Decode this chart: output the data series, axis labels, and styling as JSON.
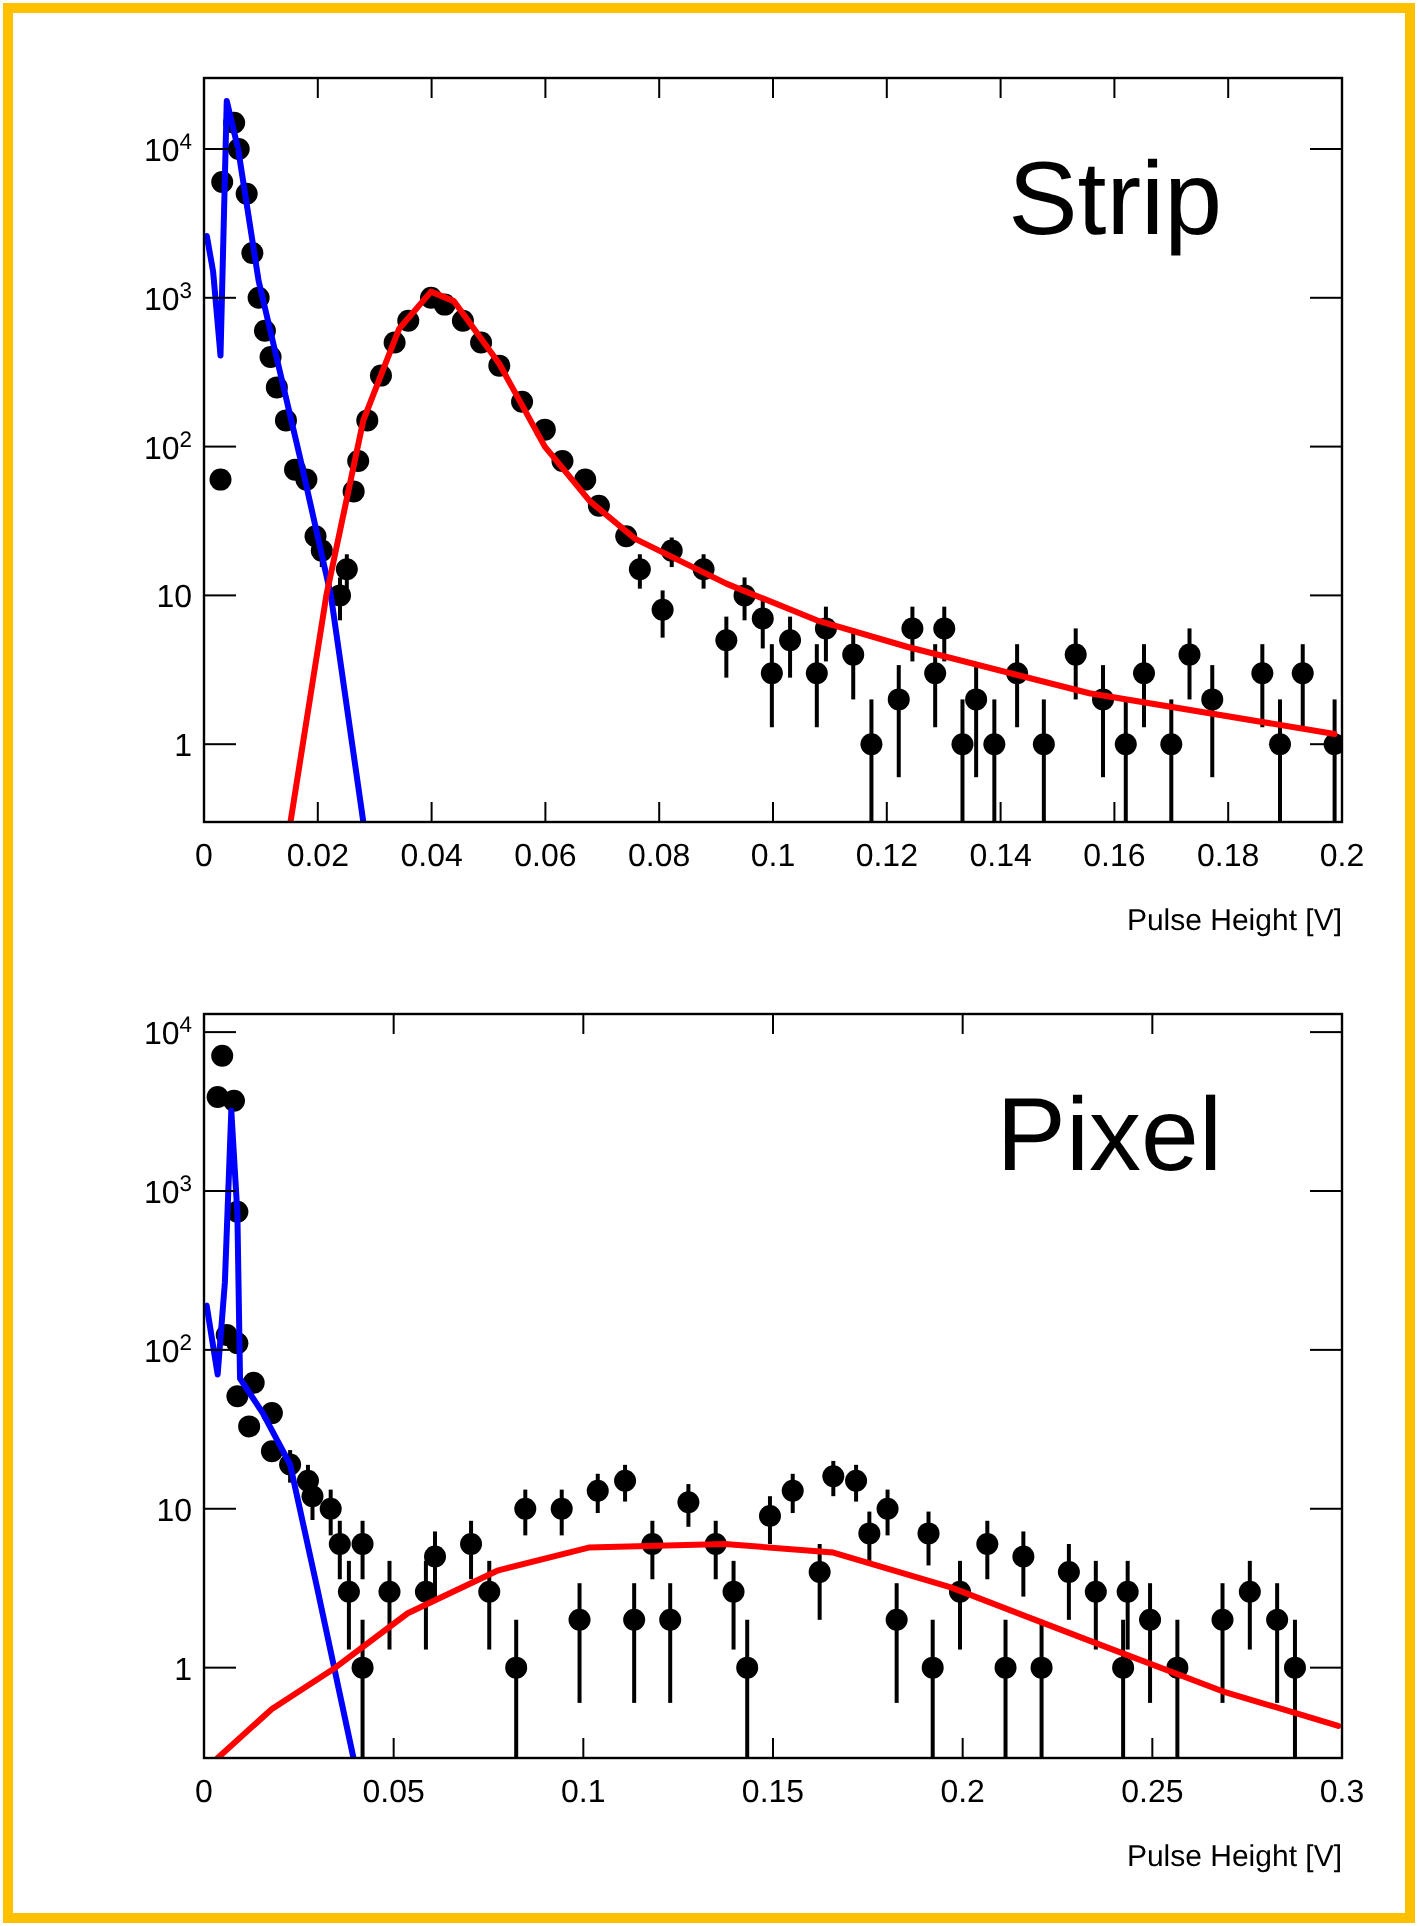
{
  "chart_data": [
    {
      "type": "scatter",
      "title": "Strip",
      "xlabel": "Pulse Height [V]",
      "log": "y",
      "xlim": [
        0,
        0.2
      ],
      "xticks": [
        0,
        0.02,
        0.04,
        0.06,
        0.08,
        0.1,
        0.12,
        0.14,
        0.16,
        0.18,
        0.2
      ],
      "ylim": [
        0.3,
        30000
      ],
      "yticks": [
        {
          "value": 1,
          "label": "1"
        },
        {
          "value": 10,
          "label": "10"
        },
        {
          "value": 100,
          "label": "10$^{2}$"
        },
        {
          "value": 1000,
          "label": "10$^{3}$"
        },
        {
          "value": 10000,
          "label": "10$^{4}$"
        }
      ],
      "series": [
        {
          "marker": "circle",
          "color": "#000000",
          "x": [
            0.0029,
            0.0032,
            0.0053,
            0.0061,
            0.0075,
            0.0085,
            0.0096,
            0.0107,
            0.0117,
            0.0128,
            0.0144,
            0.016,
            0.018,
            0.0196,
            0.0207,
            0.0239,
            0.0251,
            0.0263,
            0.0271,
            0.0287,
            0.0311,
            0.0335,
            0.0359,
            0.0399,
            0.0423,
            0.0455,
            0.0487,
            0.0519,
            0.0559,
            0.0599,
            0.063,
            0.067,
            0.0694,
            0.0742,
            0.0766,
            0.0806,
            0.0822,
            0.0878,
            0.0918,
            0.095,
            0.0982,
            0.0998,
            0.103,
            0.1077,
            0.1093,
            0.1141,
            0.1173,
            0.1221,
            0.1245,
            0.1285,
            0.1301,
            0.1333,
            0.1357,
            0.1389,
            0.1429,
            0.1476,
            0.1532,
            0.158,
            0.162,
            0.1652,
            0.17,
            0.1732,
            0.1772,
            0.186,
            0.1891,
            0.1931,
            0.1987
          ],
          "values": [
            60,
            6000,
            15000,
            10000,
            5000,
            2000,
            1000,
            600,
            400,
            250,
            150,
            70,
            60,
            25,
            20,
            10,
            15,
            50,
            80,
            150,
            300,
            500,
            700,
            1000,
            900,
            700,
            500,
            350,
            200,
            130,
            80,
            60,
            40,
            25,
            15,
            8,
            20,
            15,
            5,
            10,
            7,
            3,
            5,
            3,
            6,
            4,
            1,
            2,
            6,
            3,
            6,
            1,
            2,
            1,
            3,
            1,
            4,
            2,
            1,
            3,
            1,
            4,
            2,
            3,
            1,
            3,
            1
          ],
          "errors": [
            null,
            null,
            null,
            null,
            null,
            null,
            null,
            null,
            null,
            null,
            null,
            null,
            null,
            null,
            [
              15.5,
              24.5
            ],
            [
              6.8,
              13.2
            ],
            [
              11.1,
              18.9
            ],
            null,
            null,
            null,
            null,
            null,
            null,
            null,
            null,
            null,
            null,
            null,
            null,
            null,
            null,
            null,
            null,
            null,
            [
              11.1,
              18.9
            ],
            [
              5.2,
              10.8
            ],
            [
              15.5,
              24.5
            ],
            [
              11.1,
              18.9
            ],
            [
              2.8,
              7.2
            ],
            [
              6.8,
              13.2
            ],
            [
              4.4,
              9.6
            ],
            [
              1.3,
              4.7
            ],
            [
              2.8,
              7.2
            ],
            [
              1.3,
              4.7
            ],
            [
              3.6,
              8.4
            ],
            [
              2,
              6
            ],
            [
              0.3,
              2
            ],
            [
              0.6,
              3.4
            ],
            [
              3.6,
              8.4
            ],
            [
              1.3,
              4.7
            ],
            [
              3.6,
              8.4
            ],
            [
              0.3,
              2
            ],
            [
              0.6,
              3.4
            ],
            [
              0.3,
              2
            ],
            [
              1.3,
              4.7
            ],
            [
              0.3,
              2
            ],
            [
              2,
              6
            ],
            [
              0.6,
              3.4
            ],
            [
              0.3,
              2
            ],
            [
              1.3,
              4.7
            ],
            [
              0.3,
              2
            ],
            [
              2,
              6
            ],
            [
              0.6,
              3.4
            ],
            [
              1.3,
              4.7
            ],
            [
              0.3,
              2
            ],
            [
              1.3,
              4.7
            ],
            [
              0.3,
              2
            ]
          ]
        },
        {
          "type": "line",
          "color": "#0000ff",
          "x": [
            0.0005,
            0.0016,
            0.0029,
            0.004,
            0.006,
            0.0096,
            0.0168,
            0.0223,
            0.028
          ],
          "values": [
            2600,
            1500,
            410,
            21000,
            10000,
            1300,
            87,
            10,
            0.3
          ]
        },
        {
          "type": "line",
          "color": "#ff0000",
          "x": [
            0.0152,
            0.0215,
            0.028,
            0.0343,
            0.0399,
            0.0439,
            0.0519,
            0.0599,
            0.0678,
            0.0758,
            0.0918,
            0.1077,
            0.1237,
            0.1556,
            0.1987
          ],
          "values": [
            0.3,
            10,
            150,
            620,
            1100,
            950,
            360,
            100,
            43,
            24,
            12,
            6.8,
            4.5,
            2.2,
            1.17
          ]
        }
      ]
    },
    {
      "type": "scatter",
      "title": "Pixel",
      "xlabel": "Pulse Height [V]",
      "log": "y",
      "xlim": [
        0,
        0.3
      ],
      "xticks": [
        0,
        0.05,
        0.1,
        0.15,
        0.2,
        0.25,
        0.3
      ],
      "ylim": [
        0.27,
        13000
      ],
      "yticks": [
        {
          "value": 1,
          "label": "1"
        },
        {
          "value": 10,
          "label": "10"
        },
        {
          "value": 100,
          "label": "10$^{2}$"
        },
        {
          "value": 1000,
          "label": "10$^{3}$"
        },
        {
          "value": 10000,
          "label": "10$^{4}$"
        }
      ],
      "series": [
        {
          "marker": "circle",
          "color": "#000000",
          "x": [
            0.0048,
            0.0036,
            0.0079,
            0.0088,
            0.006,
            0.0088,
            0.0088,
            0.0131,
            0.0119,
            0.0179,
            0.0179,
            0.0227,
            0.0274,
            0.0286,
            0.0334,
            0.0358,
            0.0418,
            0.0382,
            0.0418,
            0.0489,
            0.0609,
            0.0585,
            0.0704,
            0.0752,
            0.0823,
            0.0847,
            0.0943,
            0.099,
            0.1038,
            0.111,
            0.1134,
            0.1182,
            0.1229,
            0.1277,
            0.1349,
            0.1396,
            0.1432,
            0.1492,
            0.1552,
            0.1623,
            0.1659,
            0.1719,
            0.1754,
            0.1826,
            0.1802,
            0.1921,
            0.191,
            0.1993,
            0.2065,
            0.2113,
            0.216,
            0.2208,
            0.228,
            0.2351,
            0.2435,
            0.2423,
            0.2494,
            0.2566,
            0.2685,
            0.2757,
            0.2829,
            0.2876
          ],
          "values": [
            7100,
            3900,
            3700,
            740,
            124,
            110,
            51,
            62,
            33,
            40,
            23,
            19,
            15,
            12,
            10,
            6,
            6,
            3,
            1,
            3,
            5,
            3,
            6,
            3,
            1,
            10,
            10,
            2,
            13,
            15,
            2,
            6,
            2,
            11,
            6,
            3,
            1,
            9,
            13,
            4,
            16,
            15,
            7,
            2,
            10,
            1,
            7,
            3,
            6,
            1,
            5,
            1,
            4,
            3,
            3,
            1,
            2,
            1,
            2,
            3,
            2,
            1
          ],
          "errors": [
            null,
            null,
            null,
            null,
            null,
            null,
            null,
            null,
            null,
            null,
            null,
            [
              14.6,
              23.4
            ],
            [
              11.1,
              18.9
            ],
            [
              8.5,
              15.5
            ],
            [
              6.8,
              13.2
            ],
            [
              3.6,
              8.4
            ],
            [
              3.6,
              8.4
            ],
            [
              1.3,
              4.7
            ],
            [
              0.27,
              2
            ],
            [
              1.3,
              4.7
            ],
            [
              2.8,
              7.2
            ],
            [
              1.3,
              4.7
            ],
            [
              3.6,
              8.4
            ],
            [
              1.3,
              4.7
            ],
            [
              0.27,
              2
            ],
            [
              6.8,
              13.2
            ],
            [
              6.8,
              13.2
            ],
            [
              0.6,
              3.4
            ],
            [
              9.4,
              16.6
            ],
            [
              11.1,
              18.9
            ],
            [
              0.6,
              3.4
            ],
            [
              3.6,
              8.4
            ],
            [
              0.6,
              3.4
            ],
            [
              7.7,
              14.3
            ],
            [
              3.6,
              8.4
            ],
            [
              1.3,
              4.7
            ],
            [
              0.27,
              2
            ],
            [
              6,
              12
            ],
            [
              9.4,
              16.6
            ],
            [
              2,
              6
            ],
            [
              12,
              20
            ],
            [
              11.1,
              18.9
            ],
            [
              4.4,
              9.6
            ],
            [
              0.6,
              3.4
            ],
            [
              6.8,
              13.2
            ],
            [
              0.27,
              2
            ],
            [
              4.4,
              9.6
            ],
            [
              1.3,
              4.7
            ],
            [
              3.6,
              8.4
            ],
            [
              0.27,
              2
            ],
            [
              2.8,
              7.2
            ],
            [
              0.27,
              2
            ],
            [
              2,
              6
            ],
            [
              1.3,
              4.7
            ],
            [
              1.3,
              4.7
            ],
            [
              0.27,
              2
            ],
            [
              0.6,
              3.4
            ],
            [
              0.27,
              2
            ],
            [
              0.6,
              3.4
            ],
            [
              1.3,
              4.7
            ],
            [
              0.6,
              3.4
            ],
            [
              0.27,
              2
            ]
          ]
        },
        {
          "type": "line",
          "color": "#0000ff",
          "x": [
            0.0007,
            0.0036,
            0.0055,
            0.0072,
            0.0088,
            0.0095,
            0.0155,
            0.0227,
            0.0298,
            0.0394
          ],
          "values": [
            190,
            70,
            265,
            3200,
            720,
            66,
            40,
            19,
            3.2,
            0.27
          ]
        },
        {
          "type": "line",
          "color": "#ff0000",
          "x": [
            0.0036,
            0.0179,
            0.0346,
            0.0537,
            0.0776,
            0.1014,
            0.1373,
            0.1659,
            0.1969,
            0.2327,
            0.2685,
            0.299
          ],
          "values": [
            0.27,
            0.55,
            1,
            2.2,
            4.1,
            5.7,
            6,
            5.3,
            3.2,
            1.5,
            0.71,
            0.43
          ]
        }
      ]
    }
  ]
}
